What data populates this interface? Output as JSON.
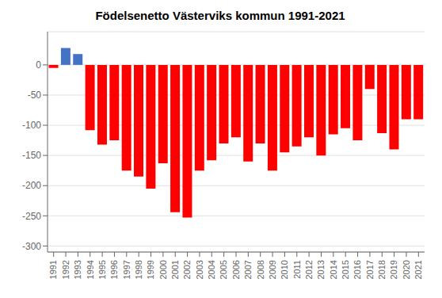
{
  "chart_data": {
    "type": "bar",
    "title": "Födelsenetto Västerviks kommun 1991-2021",
    "categories": [
      "1991",
      "1992",
      "1993",
      "1994",
      "1995",
      "1996",
      "1997",
      "1998",
      "1999",
      "2000",
      "2001",
      "2002",
      "2003",
      "2004",
      "2005",
      "2006",
      "2007",
      "2008",
      "2009",
      "2010",
      "2011",
      "2012",
      "2013",
      "2014",
      "2015",
      "2016",
      "2017",
      "2018",
      "2019",
      "2020",
      "2021"
    ],
    "values": [
      -5,
      28,
      18,
      -108,
      -132,
      -125,
      -175,
      -185,
      -205,
      -163,
      -244,
      -253,
      -175,
      -158,
      -130,
      -120,
      -160,
      -130,
      -175,
      -145,
      -135,
      -120,
      -150,
      -115,
      -105,
      -125,
      -40,
      -113,
      -140,
      -90,
      -90
    ],
    "colors": [
      "#ff0000",
      "#4472c4",
      "#4472c4",
      "#ff0000",
      "#ff0000",
      "#ff0000",
      "#ff0000",
      "#ff0000",
      "#ff0000",
      "#ff0000",
      "#ff0000",
      "#ff0000",
      "#ff0000",
      "#ff0000",
      "#ff0000",
      "#ff0000",
      "#ff0000",
      "#ff0000",
      "#ff0000",
      "#ff0000",
      "#ff0000",
      "#ff0000",
      "#ff0000",
      "#ff0000",
      "#ff0000",
      "#ff0000",
      "#ff0000",
      "#ff0000",
      "#ff0000",
      "#ff0000",
      "#ff0000"
    ],
    "ylim": [
      -310,
      55
    ],
    "yticks": [
      0,
      -50,
      -100,
      -150,
      -200,
      -250,
      -300
    ],
    "grid": true
  }
}
